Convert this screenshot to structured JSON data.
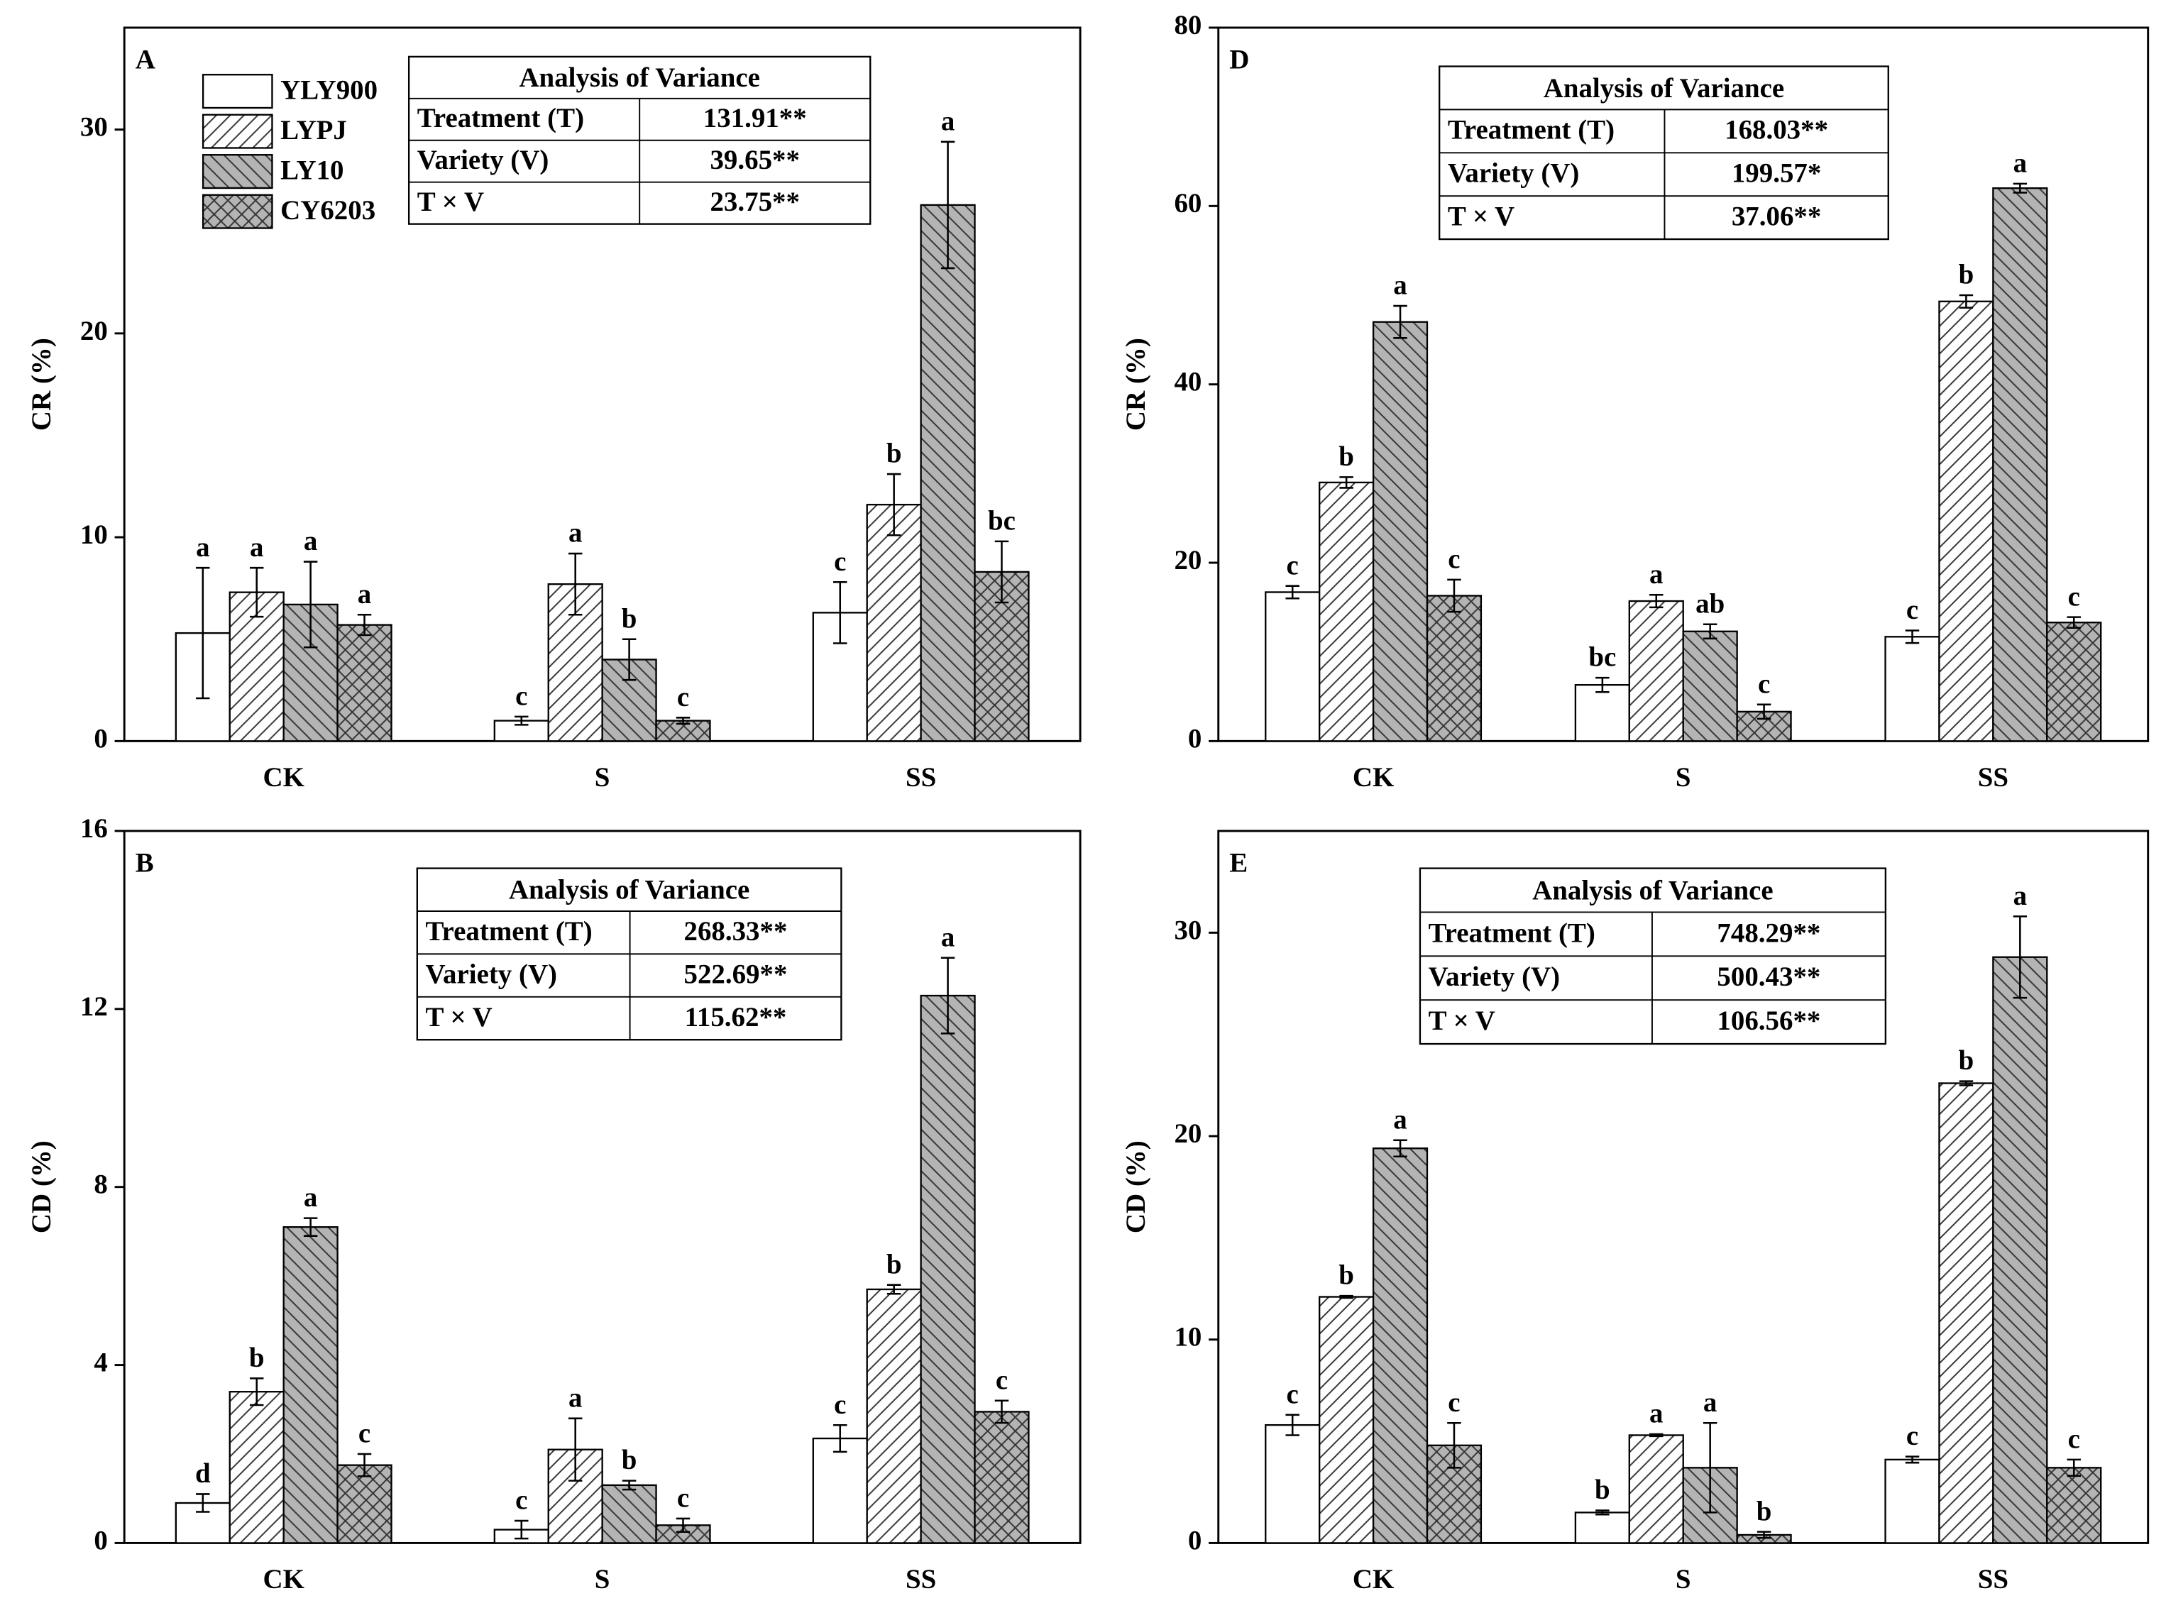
{
  "chart_data": [
    {
      "type": "bar",
      "panel_label": "A",
      "ylabel": "CR (%)",
      "categories": [
        "CK",
        "S",
        "SS"
      ],
      "ylim": [
        0,
        35
      ],
      "yticks": [
        0,
        10,
        20,
        30
      ],
      "legend": true,
      "series": [
        {
          "name": "YLY900",
          "color": "#ffffff",
          "pattern": "none",
          "values": [
            5.3,
            1.0,
            6.3
          ],
          "errors": [
            3.2,
            0.2,
            1.5
          ],
          "letters": [
            "a",
            "c",
            "c"
          ]
        },
        {
          "name": "LYPJ",
          "color": "#ffffff",
          "pattern": "slash",
          "values": [
            7.3,
            7.7,
            11.6
          ],
          "errors": [
            1.2,
            1.5,
            1.5
          ],
          "letters": [
            "a",
            "a",
            "b"
          ]
        },
        {
          "name": "LY10",
          "color": "#b4b4b4",
          "pattern": "backslash",
          "values": [
            6.7,
            4.0,
            26.3
          ],
          "errors": [
            2.1,
            1.0,
            3.1
          ],
          "letters": [
            "a",
            "b",
            "a"
          ]
        },
        {
          "name": "CY6203",
          "color": "#b4b4b4",
          "pattern": "cross",
          "values": [
            5.7,
            1.0,
            8.3
          ],
          "errors": [
            0.5,
            0.15,
            1.5
          ],
          "letters": [
            "a",
            "c",
            "bc"
          ]
        }
      ],
      "anova": {
        "title": "Analysis of Variance",
        "rows": [
          {
            "label": "Treatment (T)",
            "value": "131.91**"
          },
          {
            "label": "Variety (V)",
            "value": "39.65**"
          },
          {
            "label": "T × V",
            "value": "23.75**"
          }
        ]
      }
    },
    {
      "type": "bar",
      "panel_label": "B",
      "ylabel": "CD (%)",
      "categories": [
        "CK",
        "S",
        "SS"
      ],
      "ylim": [
        0,
        16
      ],
      "yticks": [
        0,
        4,
        8,
        12,
        16
      ],
      "legend": false,
      "series": [
        {
          "color": "#ffffff",
          "pattern": "none",
          "values": [
            0.9,
            0.3,
            2.35
          ],
          "errors": [
            0.2,
            0.2,
            0.3
          ],
          "letters": [
            "d",
            "c",
            "c"
          ]
        },
        {
          "color": "#ffffff",
          "pattern": "slash",
          "values": [
            3.4,
            2.1,
            5.7
          ],
          "errors": [
            0.3,
            0.7,
            0.1
          ],
          "letters": [
            "b",
            "a",
            "b"
          ]
        },
        {
          "color": "#b4b4b4",
          "pattern": "backslash",
          "values": [
            7.1,
            1.3,
            12.3
          ],
          "errors": [
            0.2,
            0.1,
            0.85
          ],
          "letters": [
            "a",
            "b",
            "a"
          ]
        },
        {
          "color": "#b4b4b4",
          "pattern": "cross",
          "values": [
            1.75,
            0.4,
            2.95
          ],
          "errors": [
            0.25,
            0.15,
            0.25
          ],
          "letters": [
            "c",
            "c",
            "c"
          ]
        }
      ],
      "anova": {
        "title": "Analysis of Variance",
        "rows": [
          {
            "label": "Treatment (T)",
            "value": "268.33**"
          },
          {
            "label": "Variety (V)",
            "value": "522.69**"
          },
          {
            "label": "T × V",
            "value": "115.62**"
          }
        ]
      }
    },
    {
      "type": "bar",
      "panel_label": "D",
      "ylabel": "CR (%)",
      "categories": [
        "CK",
        "S",
        "SS"
      ],
      "ylim": [
        0,
        80
      ],
      "yticks": [
        0,
        20,
        40,
        60,
        80
      ],
      "legend": false,
      "series": [
        {
          "color": "#ffffff",
          "pattern": "none",
          "values": [
            16.7,
            6.3,
            11.7
          ],
          "errors": [
            0.7,
            0.8,
            0.7
          ],
          "letters": [
            "c",
            "bc",
            "c"
          ]
        },
        {
          "color": "#ffffff",
          "pattern": "slash",
          "values": [
            29.0,
            15.7,
            49.3
          ],
          "errors": [
            0.6,
            0.7,
            0.7
          ],
          "letters": [
            "b",
            "a",
            "b"
          ]
        },
        {
          "color": "#b4b4b4",
          "pattern": "backslash",
          "values": [
            47.0,
            12.3,
            62.0
          ],
          "errors": [
            1.8,
            0.8,
            0.5
          ],
          "letters": [
            "a",
            "ab",
            "a"
          ]
        },
        {
          "color": "#b4b4b4",
          "pattern": "cross",
          "values": [
            16.3,
            3.3,
            13.3
          ],
          "errors": [
            1.8,
            0.8,
            0.6
          ],
          "letters": [
            "c",
            "c",
            "c"
          ]
        }
      ],
      "anova": {
        "title": "Analysis of Variance",
        "rows": [
          {
            "label": "Treatment (T)",
            "value": "168.03**"
          },
          {
            "label": "Variety (V)",
            "value": "199.57*"
          },
          {
            "label": "T × V",
            "value": "37.06**"
          }
        ]
      }
    },
    {
      "type": "bar",
      "panel_label": "E",
      "ylabel": "CD (%)",
      "categories": [
        "CK",
        "S",
        "SS"
      ],
      "ylim": [
        0,
        35
      ],
      "yticks": [
        0,
        10,
        20,
        30
      ],
      "legend": false,
      "series": [
        {
          "color": "#ffffff",
          "pattern": "none",
          "values": [
            5.8,
            1.5,
            4.1
          ],
          "errors": [
            0.5,
            0.1,
            0.15
          ],
          "letters": [
            "c",
            "b",
            "c"
          ]
        },
        {
          "color": "#ffffff",
          "pattern": "slash",
          "values": [
            12.1,
            5.3,
            22.6
          ],
          "errors": [
            0.05,
            0.05,
            0.1
          ],
          "letters": [
            "b",
            "a",
            "b"
          ]
        },
        {
          "color": "#b4b4b4",
          "pattern": "backslash",
          "values": [
            19.4,
            3.7,
            28.8
          ],
          "errors": [
            0.4,
            2.2,
            2.0
          ],
          "letters": [
            "a",
            "a",
            "a"
          ]
        },
        {
          "color": "#b4b4b4",
          "pattern": "cross",
          "values": [
            4.8,
            0.4,
            3.7
          ],
          "errors": [
            1.1,
            0.15,
            0.4
          ],
          "letters": [
            "c",
            "b",
            "c"
          ]
        }
      ],
      "anova": {
        "title": "Analysis of Variance",
        "rows": [
          {
            "label": "Treatment (T)",
            "value": "748.29**"
          },
          {
            "label": "Variety (V)",
            "value": "500.43**"
          },
          {
            "label": "T × V",
            "value": "106.56**"
          }
        ]
      }
    }
  ]
}
